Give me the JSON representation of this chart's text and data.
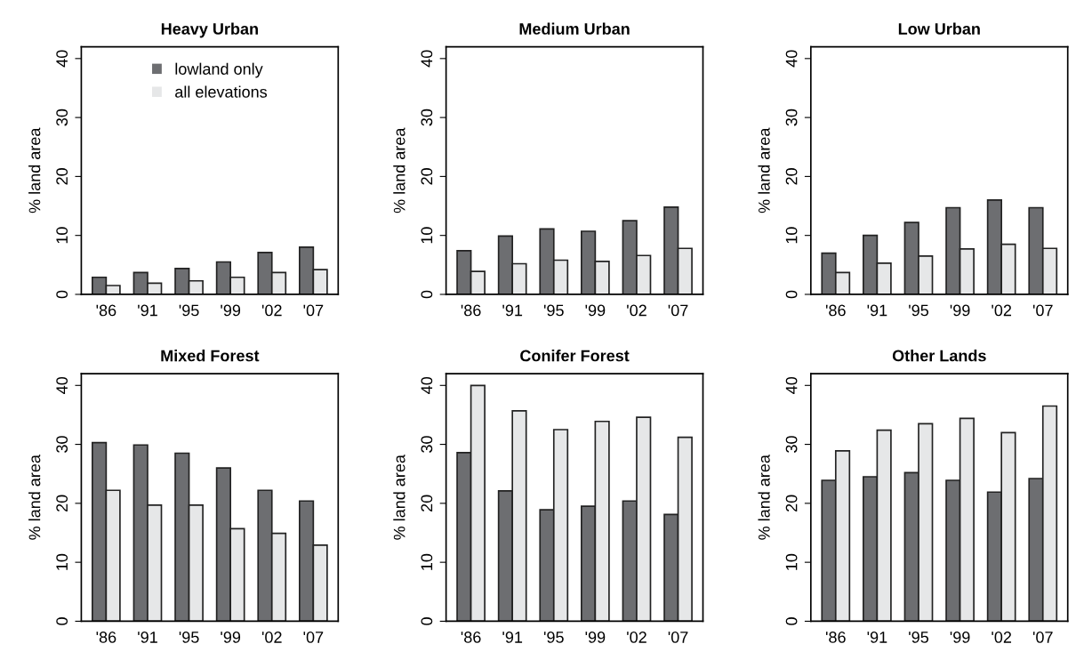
{
  "chart_data": [
    {
      "type": "bar",
      "title": "Heavy Urban",
      "ylabel": "% land area",
      "categories": [
        "'86",
        "'91",
        "'95",
        "'99",
        "'02",
        "'07"
      ],
      "ylim": [
        0,
        42
      ],
      "yticks": [
        0,
        10,
        20,
        30,
        40
      ],
      "legend": "top",
      "series": [
        {
          "name": "lowland only",
          "color": "#6d6e71",
          "values": [
            2.9,
            3.7,
            4.4,
            5.5,
            7.1,
            8.0
          ]
        },
        {
          "name": "all elevations",
          "color": "#e6e7e8",
          "values": [
            1.5,
            1.9,
            2.3,
            2.9,
            3.7,
            4.2
          ]
        }
      ]
    },
    {
      "type": "bar",
      "title": "Medium Urban",
      "ylabel": "% land area",
      "categories": [
        "'86",
        "'91",
        "'95",
        "'99",
        "'02",
        "'07"
      ],
      "ylim": [
        0,
        42
      ],
      "yticks": [
        0,
        10,
        20,
        30,
        40
      ],
      "series": [
        {
          "color": "#6d6e71",
          "values": [
            7.4,
            9.9,
            11.1,
            10.7,
            12.5,
            14.8
          ]
        },
        {
          "color": "#e6e7e8",
          "values": [
            3.9,
            5.2,
            5.8,
            5.6,
            6.6,
            7.8
          ]
        }
      ]
    },
    {
      "type": "bar",
      "title": "Low Urban",
      "ylabel": "% land area",
      "categories": [
        "'86",
        "'91",
        "'95",
        "'99",
        "'02",
        "'07"
      ],
      "ylim": [
        0,
        42
      ],
      "yticks": [
        0,
        10,
        20,
        30,
        40
      ],
      "series": [
        {
          "color": "#6d6e71",
          "values": [
            7.0,
            10.0,
            12.2,
            14.7,
            16.0,
            14.7
          ]
        },
        {
          "color": "#e6e7e8",
          "values": [
            3.7,
            5.3,
            6.5,
            7.7,
            8.5,
            7.8
          ]
        }
      ]
    },
    {
      "type": "bar",
      "title": "Mixed Forest",
      "ylabel": "% land area",
      "categories": [
        "'86",
        "'91",
        "'95",
        "'99",
        "'02",
        "'07"
      ],
      "ylim": [
        0,
        42
      ],
      "yticks": [
        0,
        10,
        20,
        30,
        40
      ],
      "series": [
        {
          "color": "#6d6e71",
          "values": [
            30.3,
            29.9,
            28.5,
            26.0,
            22.2,
            20.4
          ]
        },
        {
          "color": "#e6e7e8",
          "values": [
            22.2,
            19.7,
            19.7,
            15.7,
            14.9,
            12.9
          ]
        }
      ]
    },
    {
      "type": "bar",
      "title": "Conifer Forest",
      "ylabel": "% land area",
      "categories": [
        "'86",
        "'91",
        "'95",
        "'99",
        "'02",
        "'07"
      ],
      "ylim": [
        0,
        42
      ],
      "yticks": [
        0,
        10,
        20,
        30,
        40
      ],
      "series": [
        {
          "color": "#6d6e71",
          "values": [
            28.6,
            22.1,
            18.9,
            19.5,
            20.4,
            18.1
          ]
        },
        {
          "color": "#e6e7e8",
          "values": [
            40.0,
            35.7,
            32.5,
            33.9,
            34.6,
            31.2
          ]
        }
      ]
    },
    {
      "type": "bar",
      "title": "Other Lands",
      "ylabel": "% land area",
      "categories": [
        "'86",
        "'91",
        "'95",
        "'99",
        "'02",
        "'07"
      ],
      "ylim": [
        0,
        42
      ],
      "yticks": [
        0,
        10,
        20,
        30,
        40
      ],
      "series": [
        {
          "color": "#6d6e71",
          "values": [
            23.9,
            24.5,
            25.2,
            23.9,
            21.9,
            24.2
          ]
        },
        {
          "color": "#e6e7e8",
          "values": [
            28.9,
            32.4,
            33.5,
            34.4,
            32.0,
            36.5
          ]
        }
      ]
    }
  ]
}
